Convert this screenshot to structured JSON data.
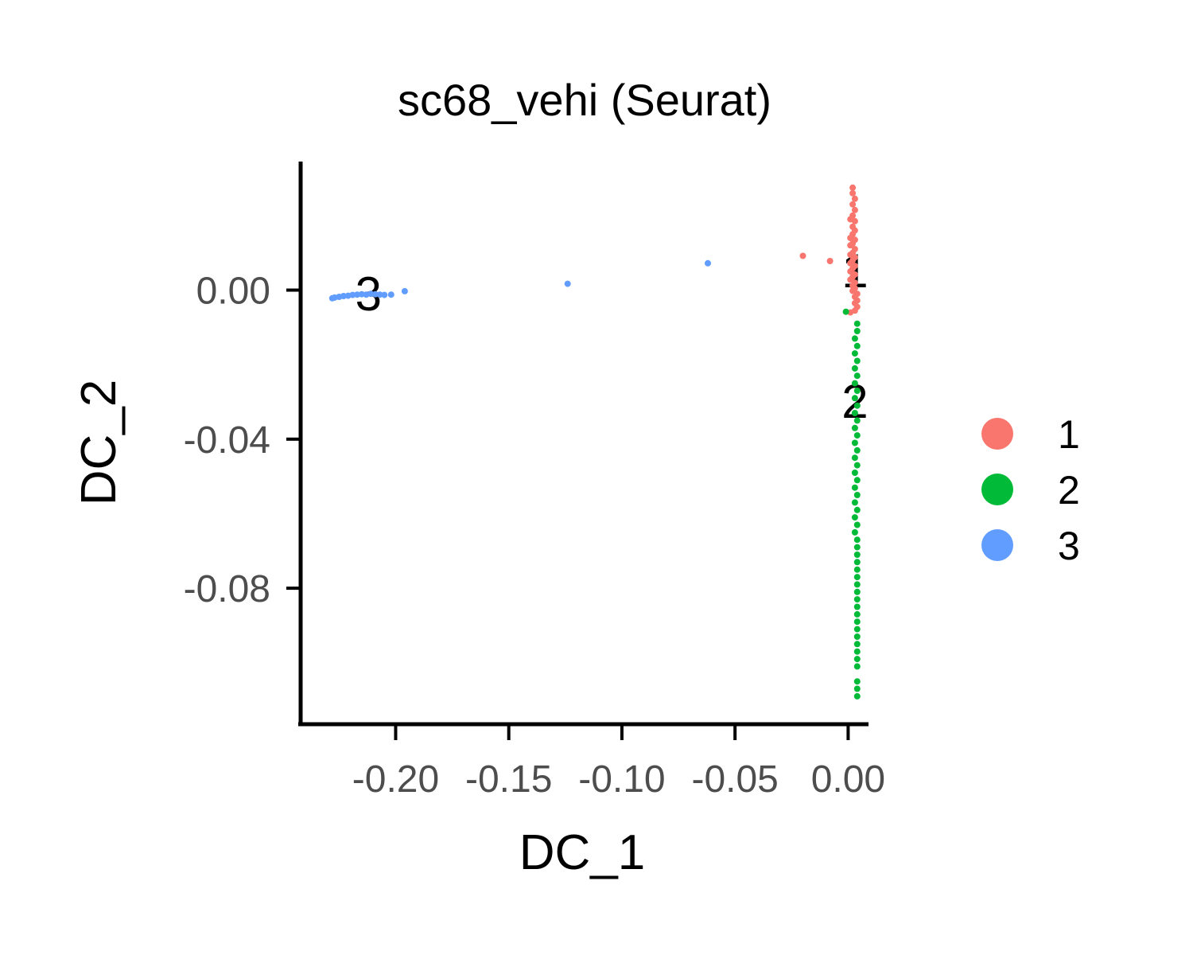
{
  "chart_data": {
    "type": "scatter",
    "title": "sc68_vehi (Seurat)",
    "xlabel": "DC_1",
    "ylabel": "DC_2",
    "xlim": [
      -0.242,
      0.009
    ],
    "ylim": [
      -0.1165,
      0.0345
    ],
    "x_ticks": [
      -0.2,
      -0.15,
      -0.1,
      -0.05,
      0.0
    ],
    "x_tick_labels": [
      "-0.20",
      "-0.15",
      "-0.10",
      "-0.05",
      "0.00"
    ],
    "y_ticks": [
      0.0,
      -0.04,
      -0.08
    ],
    "y_tick_labels": [
      "0.00",
      "-0.04",
      "-0.08"
    ],
    "grid": false,
    "legend_position": "right",
    "series": [
      {
        "name": "1",
        "color": "#F8766D",
        "points": [
          [
            -0.02,
            0.0092
          ],
          [
            -0.008,
            0.0078
          ],
          [
            0.002,
            0.0275
          ],
          [
            0.002,
            0.026
          ],
          [
            0.003,
            0.0245
          ],
          [
            0.002,
            0.023
          ],
          [
            0.003,
            0.0215
          ],
          [
            0.002,
            0.02
          ],
          [
            0.003,
            0.0185
          ],
          [
            0.001,
            0.019
          ],
          [
            0.002,
            0.017
          ],
          [
            0.003,
            0.016
          ],
          [
            0.002,
            0.015
          ],
          [
            0.001,
            0.014
          ],
          [
            0.003,
            0.0135
          ],
          [
            0.002,
            0.0125
          ],
          [
            0.001,
            0.012
          ],
          [
            0.003,
            0.011
          ],
          [
            0.002,
            0.01
          ],
          [
            0.001,
            0.0095
          ],
          [
            0.003,
            0.0088
          ],
          [
            0.002,
            0.008
          ],
          [
            0.001,
            0.0072
          ],
          [
            0.003,
            0.0065
          ],
          [
            0.002,
            0.0058
          ],
          [
            0.001,
            0.005
          ],
          [
            0.003,
            0.0042
          ],
          [
            0.002,
            0.0035
          ],
          [
            0.001,
            0.0028
          ],
          [
            0.003,
            0.002
          ],
          [
            0.002,
            0.0012
          ],
          [
            0.003,
            0.0005
          ],
          [
            0.002,
            -0.0002
          ],
          [
            0.004,
            -0.001
          ],
          [
            0.003,
            -0.0018
          ],
          [
            0.004,
            -0.0028
          ],
          [
            0.003,
            -0.0035
          ],
          [
            0.004,
            -0.0045
          ],
          [
            0.003,
            -0.0055
          ],
          [
            0.001,
            -0.006
          ]
        ]
      },
      {
        "name": "2",
        "color": "#00BA38",
        "points": [
          [
            -0.001,
            -0.0058
          ],
          [
            0.004,
            -0.009
          ],
          [
            0.004,
            -0.011
          ],
          [
            0.003,
            -0.013
          ],
          [
            0.004,
            -0.015
          ],
          [
            0.003,
            -0.017
          ],
          [
            0.004,
            -0.019
          ],
          [
            0.003,
            -0.021
          ],
          [
            0.004,
            -0.023
          ],
          [
            0.003,
            -0.025
          ],
          [
            0.004,
            -0.027
          ],
          [
            0.003,
            -0.029
          ],
          [
            0.004,
            -0.031
          ],
          [
            0.003,
            -0.033
          ],
          [
            0.004,
            -0.035
          ],
          [
            0.003,
            -0.037
          ],
          [
            0.004,
            -0.039
          ],
          [
            0.003,
            -0.041
          ],
          [
            0.004,
            -0.043
          ],
          [
            0.003,
            -0.045
          ],
          [
            0.004,
            -0.047
          ],
          [
            0.003,
            -0.049
          ],
          [
            0.004,
            -0.051
          ],
          [
            0.003,
            -0.053
          ],
          [
            0.004,
            -0.055
          ],
          [
            0.003,
            -0.057
          ],
          [
            0.004,
            -0.059
          ],
          [
            0.003,
            -0.061
          ],
          [
            0.004,
            -0.063
          ],
          [
            0.003,
            -0.065
          ],
          [
            0.004,
            -0.067
          ],
          [
            0.004,
            -0.069
          ],
          [
            0.004,
            -0.071
          ],
          [
            0.004,
            -0.073
          ],
          [
            0.004,
            -0.075
          ],
          [
            0.004,
            -0.077
          ],
          [
            0.004,
            -0.079
          ],
          [
            0.004,
            -0.081
          ],
          [
            0.004,
            -0.083
          ],
          [
            0.004,
            -0.085
          ],
          [
            0.004,
            -0.087
          ],
          [
            0.004,
            -0.089
          ],
          [
            0.004,
            -0.091
          ],
          [
            0.004,
            -0.093
          ],
          [
            0.004,
            -0.095
          ],
          [
            0.004,
            -0.097
          ],
          [
            0.004,
            -0.099
          ],
          [
            0.004,
            -0.101
          ],
          [
            0.004,
            -0.105
          ],
          [
            0.004,
            -0.107
          ],
          [
            0.004,
            -0.109
          ]
        ]
      },
      {
        "name": "3",
        "color": "#619CFF",
        "points": [
          [
            -0.062,
            0.0072
          ],
          [
            -0.124,
            0.0017
          ],
          [
            -0.196,
            -0.0003
          ],
          [
            -0.228,
            -0.0022
          ],
          [
            -0.227,
            -0.002
          ],
          [
            -0.225,
            -0.0018
          ],
          [
            -0.223,
            -0.0016
          ],
          [
            -0.221,
            -0.0015
          ],
          [
            -0.219,
            -0.0013
          ],
          [
            -0.217,
            -0.0012
          ],
          [
            -0.215,
            -0.0011
          ],
          [
            -0.213,
            -0.0012
          ],
          [
            -0.211,
            -0.001
          ],
          [
            -0.209,
            -0.0011
          ],
          [
            -0.207,
            -0.0012
          ],
          [
            -0.205,
            -0.0013
          ],
          [
            -0.202,
            -0.0012
          ]
        ]
      }
    ],
    "cluster_labels": [
      {
        "text": "1",
        "x": 0.003,
        "y": 0.005
      },
      {
        "text": "2",
        "x": 0.003,
        "y": -0.03
      },
      {
        "text": "3",
        "x": -0.212,
        "y": -0.0012
      }
    ]
  }
}
